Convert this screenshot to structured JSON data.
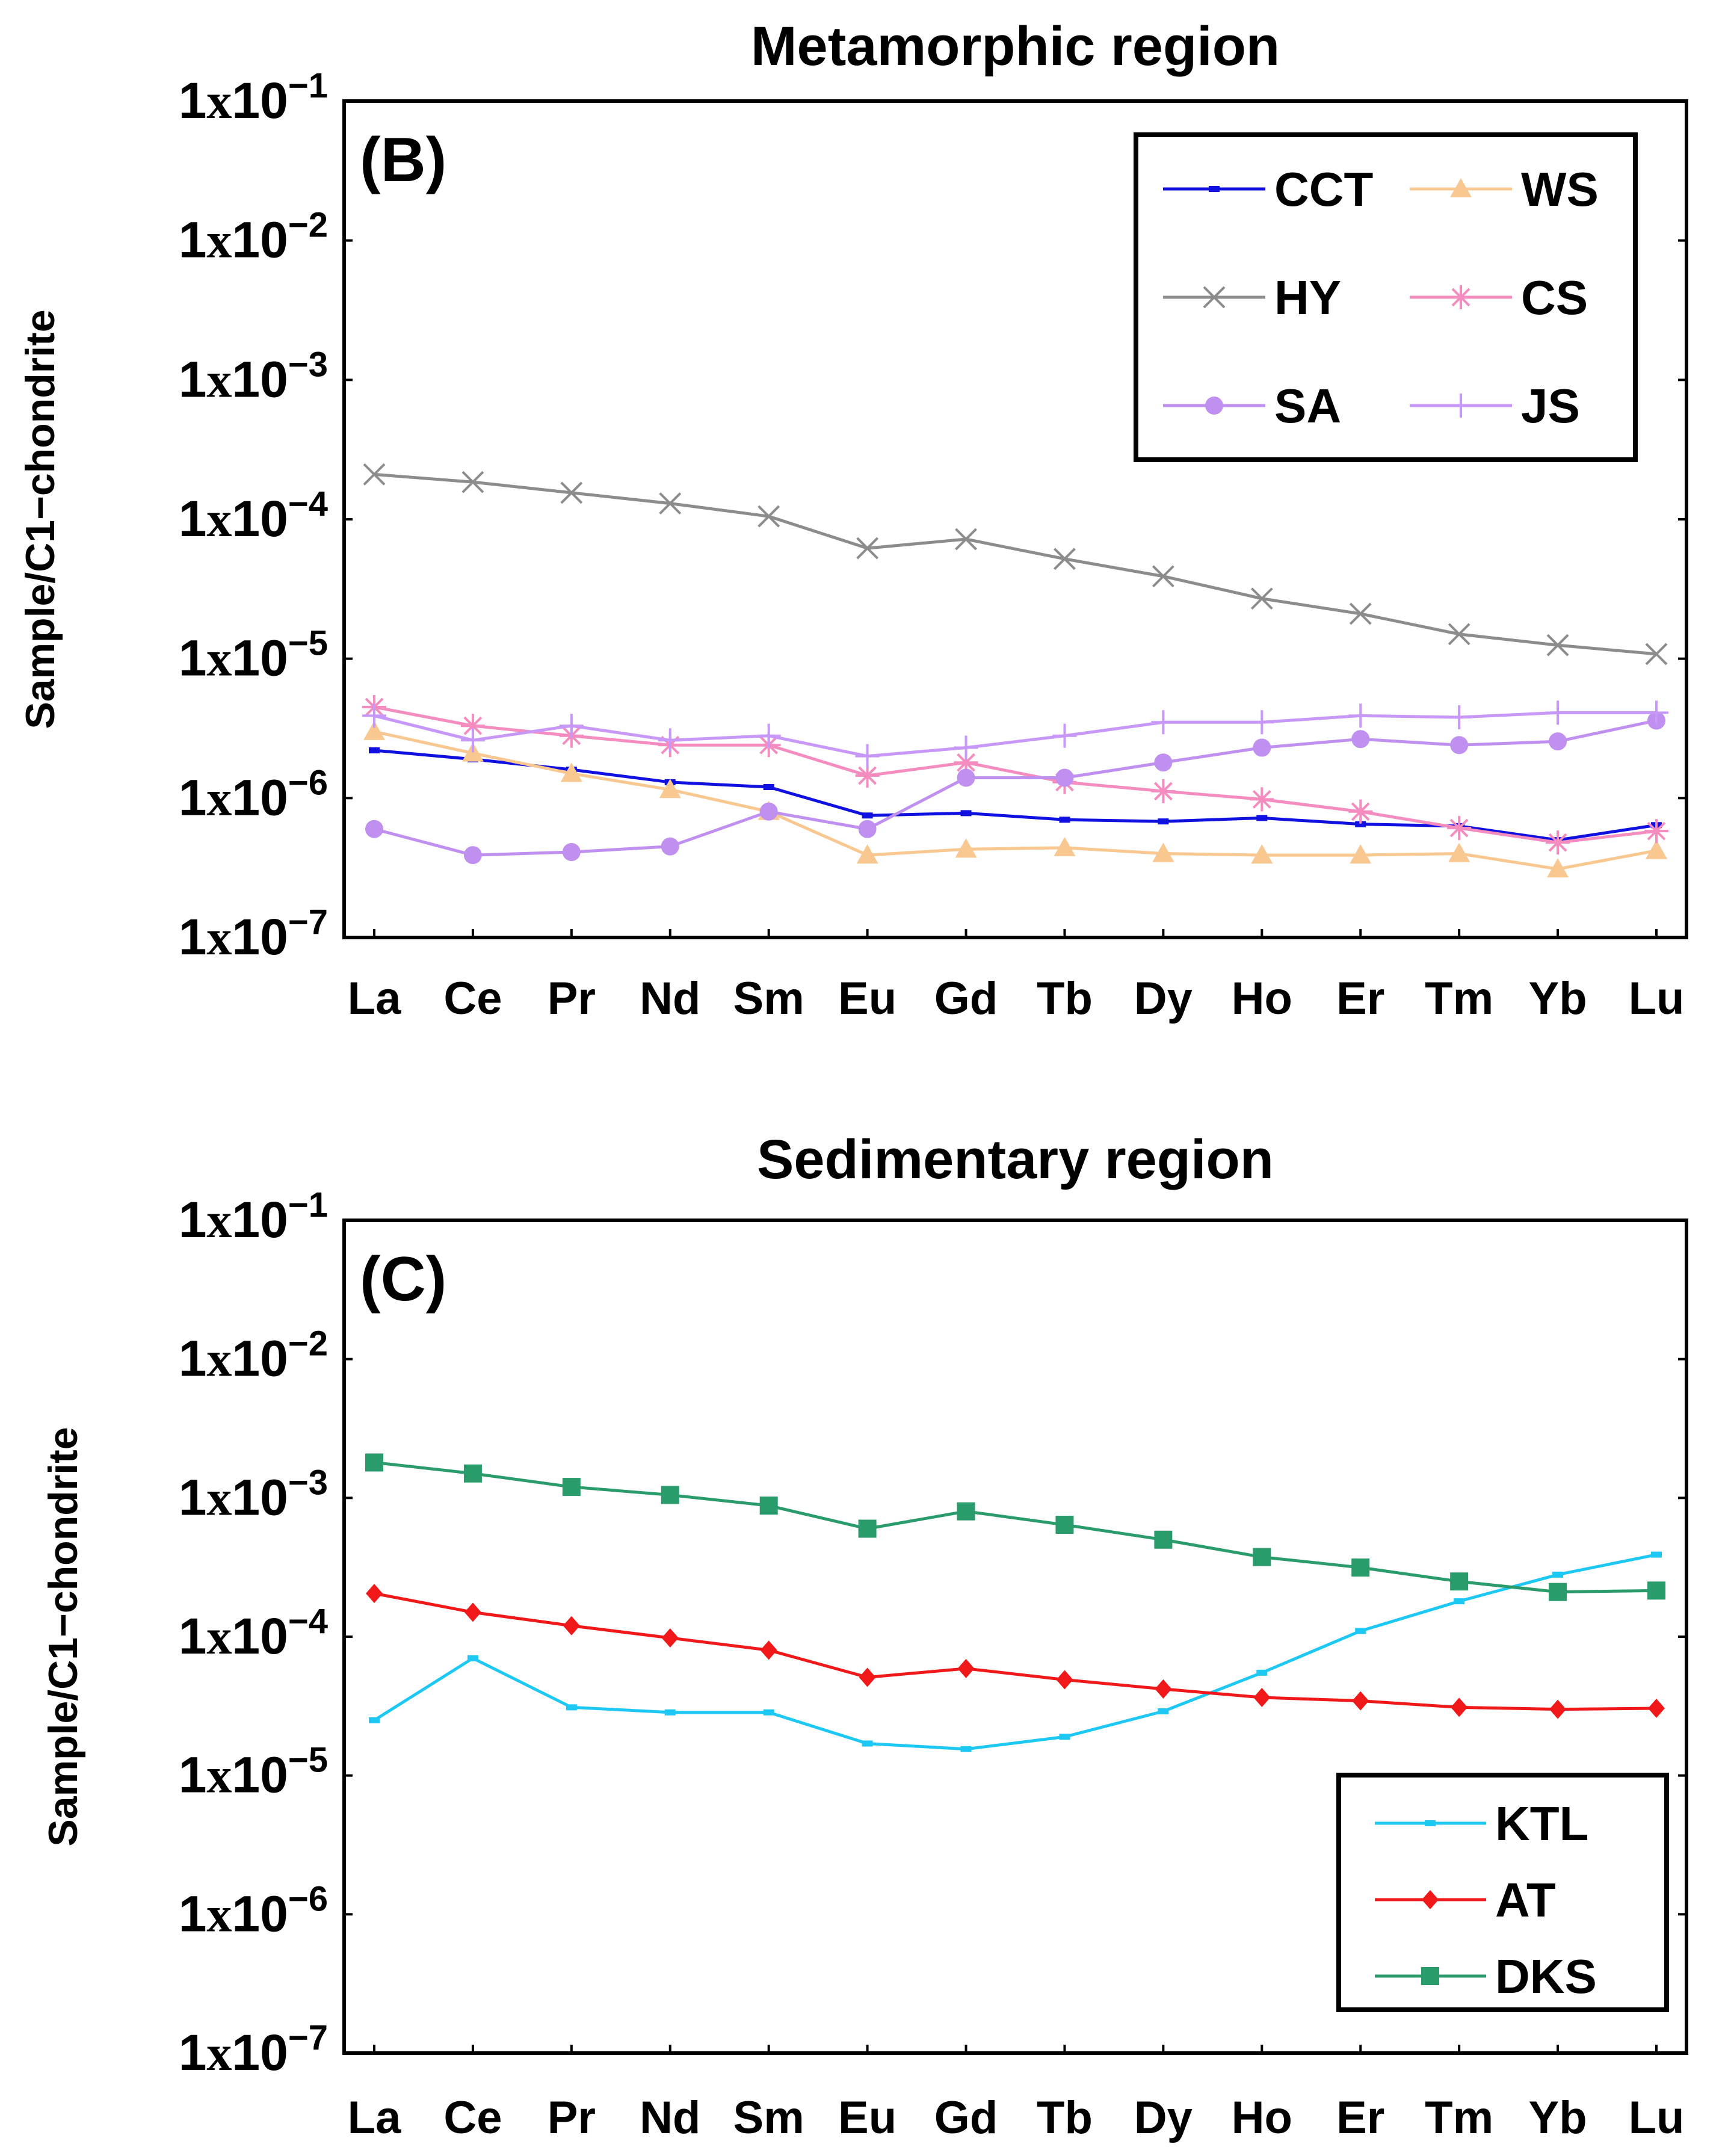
{
  "chart_data": [
    {
      "type": "line",
      "title": "Metamorphic region",
      "panel_label": "(B)",
      "ylabel": "Sample/C1−chondrite",
      "yscale": "log",
      "ylim": [
        1e-07,
        0.1
      ],
      "ytick_labels": [
        {
          "base": "1x10",
          "exp": "-7"
        },
        {
          "base": "1x10",
          "exp": "-6"
        },
        {
          "base": "1x10",
          "exp": "-5"
        },
        {
          "base": "1x10",
          "exp": "-4"
        },
        {
          "base": "1x10",
          "exp": "-3"
        },
        {
          "base": "1x10",
          "exp": "-2"
        },
        {
          "base": "1x10",
          "exp": "-1"
        }
      ],
      "categories": [
        "La",
        "Ce",
        "Pr",
        "Nd",
        "Sm",
        "Eu",
        "Gd",
        "Tb",
        "Dy",
        "Ho",
        "Er",
        "Tm",
        "Yb",
        "Lu"
      ],
      "legend_position": "top-right",
      "series": [
        {
          "name": "CCT",
          "color": "#1010e0",
          "marker": "dash",
          "values": [
            2.2e-06,
            1.9e-06,
            1.6e-06,
            1.3e-06,
            1.2e-06,
            7.5e-07,
            7.8e-07,
            7e-07,
            6.8e-07,
            7.2e-07,
            6.5e-07,
            6.3e-07,
            5e-07,
            6.4e-07
          ]
        },
        {
          "name": "WS",
          "color": "#f8c890",
          "marker": "triangle",
          "values": [
            3e-06,
            2.1e-06,
            1.5e-06,
            1.15e-06,
            8e-07,
            3.9e-07,
            4.3e-07,
            4.4e-07,
            4e-07,
            3.9e-07,
            3.9e-07,
            4e-07,
            3.1e-07,
            4.2e-07
          ]
        },
        {
          "name": "HY",
          "color": "#8c8c8c",
          "marker": "x",
          "values": [
            0.00021,
            0.000185,
            0.000155,
            0.00013,
            0.000105,
            6.2e-05,
            7.2e-05,
            5.2e-05,
            3.9e-05,
            2.7e-05,
            2.1e-05,
            1.5e-05,
            1.25e-05,
            1.08e-05
          ]
        },
        {
          "name": "CS",
          "color": "#f48cc0",
          "marker": "asterisk",
          "values": [
            4.5e-06,
            3.3e-06,
            2.8e-06,
            2.4e-06,
            2.4e-06,
            1.45e-06,
            1.8e-06,
            1.3e-06,
            1.12e-06,
            9.8e-07,
            8e-07,
            6.1e-07,
            4.8e-07,
            5.8e-07
          ]
        },
        {
          "name": "SA",
          "color": "#c090f0",
          "marker": "circle",
          "values": [
            6e-07,
            3.9e-07,
            4.1e-07,
            4.5e-07,
            8e-07,
            6e-07,
            1.4e-06,
            1.4e-06,
            1.8e-06,
            2.3e-06,
            2.65e-06,
            2.4e-06,
            2.55e-06,
            3.6e-06
          ]
        },
        {
          "name": "JS",
          "color": "#c898f8",
          "marker": "plus",
          "values": [
            3.9e-06,
            2.6e-06,
            3.3e-06,
            2.6e-06,
            2.8e-06,
            2e-06,
            2.3e-06,
            2.8e-06,
            3.5e-06,
            3.5e-06,
            3.9e-06,
            3.8e-06,
            4.1e-06,
            4.1e-06
          ]
        }
      ]
    },
    {
      "type": "line",
      "title": "Sedimentary region",
      "panel_label": "(C)",
      "ylabel": "Sample/C1−chondrite",
      "yscale": "log",
      "ylim": [
        1e-07,
        0.1
      ],
      "ytick_labels": [
        {
          "base": "1x10",
          "exp": "-7"
        },
        {
          "base": "1x10",
          "exp": "-6"
        },
        {
          "base": "1x10",
          "exp": "-5"
        },
        {
          "base": "1x10",
          "exp": "-4"
        },
        {
          "base": "1x10",
          "exp": "-3"
        },
        {
          "base": "1x10",
          "exp": "-2"
        },
        {
          "base": "1x10",
          "exp": "-1"
        }
      ],
      "categories": [
        "La",
        "Ce",
        "Pr",
        "Nd",
        "Sm",
        "Eu",
        "Gd",
        "Tb",
        "Dy",
        "Ho",
        "Er",
        "Tm",
        "Yb",
        "Lu"
      ],
      "legend_position": "bottom-right",
      "series": [
        {
          "name": "KTL",
          "color": "#1ec8f5",
          "marker": "dash",
          "values": [
            2.5e-05,
            7e-05,
            3.1e-05,
            2.85e-05,
            2.85e-05,
            1.7e-05,
            1.55e-05,
            1.9e-05,
            2.9e-05,
            5.5e-05,
            0.00011,
            0.00018,
            0.00028,
            0.00039
          ]
        },
        {
          "name": "AT",
          "color": "#f01818",
          "marker": "diamond",
          "values": [
            0.000205,
            0.00015,
            0.00012,
            9.8e-05,
            8e-05,
            5.1e-05,
            5.9e-05,
            4.9e-05,
            4.2e-05,
            3.65e-05,
            3.45e-05,
            3.1e-05,
            3e-05,
            3.05e-05
          ]
        },
        {
          "name": "DKS",
          "color": "#2a9b6a",
          "marker": "square",
          "values": [
            0.0018,
            0.0015,
            0.0012,
            0.00105,
            0.00088,
            0.0006,
            0.0008,
            0.00064,
            0.0005,
            0.000375,
            0.000315,
            0.00025,
            0.00021,
            0.000215
          ]
        }
      ]
    }
  ]
}
